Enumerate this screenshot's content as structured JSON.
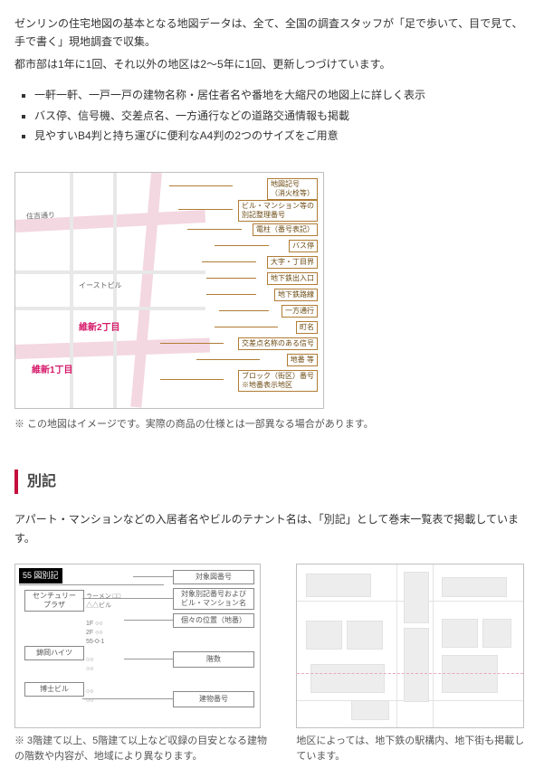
{
  "intro": {
    "line1": "ゼンリンの住宅地図の基本となる地図データは、全て、全国の調査スタッフが「足で歩いて、目で見て、手で書く」現地調査で収集。",
    "line2": "都市部は1年に1回、それ以外の地区は2～5年に1回、更新しつづけています。"
  },
  "features": [
    "一軒一軒、一戸一戸の建物名称・居住者名や番地を大縮尺の地図上に詳しく表示",
    "バス停、信号機、交差点名、一方通行などの道路交通情報も掲載",
    "見やすいB4判と持ち運びに便利なA4判の2つのサイズをご用意"
  ],
  "map": {
    "roads": {
      "street_label": "住吉通り"
    },
    "districts": {
      "d1": "維新1丁目",
      "d2": "維新2丁目"
    },
    "building": "イーストビル",
    "callouts": [
      "地図記号\n（消火栓等）",
      "ビル・マンション等の\n別記整理番号",
      "電柱（番号表記）",
      "バス停",
      "大字・丁目界",
      "地下鉄出入口",
      "地下鉄路線",
      "一方通行",
      "町名",
      "交差点名称のある信号",
      "地番 等",
      "ブロック（街区）番号\n※地番表示地区"
    ],
    "note": "※ この地図はイメージです。実際の商品の仕様とは一部異なる場合があります。"
  },
  "bekki": {
    "heading": "別記",
    "para": "アパート・マンションなどの入居者名やビルのテナント名は、「別記」として巻末一覧表で掲載しています。",
    "left": {
      "title": "55 図別記",
      "boxes": [
        "対象図番号",
        "対象別記番号および\nビル・マンション名",
        "個々の位置（地番）",
        "階数",
        "建物番号"
      ],
      "names": [
        "センチュリー\nプラザ",
        "錦岡ハイツ",
        "博士ビル"
      ],
      "caption": "※ 3階建て以上、5階建て以上など収録の目安となる建物の階数や内容が、地域により異なります。"
    },
    "right": {
      "caption": "地区によっては、地下鉄の駅構内、地下街も掲載しています。"
    }
  }
}
